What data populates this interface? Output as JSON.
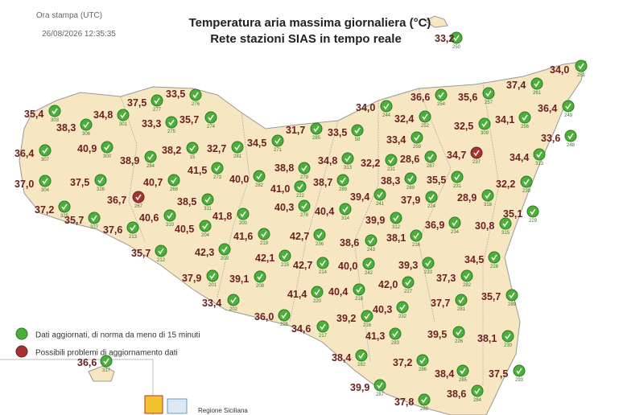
{
  "header": {
    "print_label": "Ora stampa (UTC)",
    "print_time": "26/08/2026 12:35:35",
    "title": "Temperatura aria massima giornaliera (°C)",
    "subtitle": "Rete stazioni SIAS in tempo reale"
  },
  "legend": {
    "ok": "Dati aggiornati, di norma da meno di 15 minuti",
    "problem": "Possibili problemi di aggiornamento dati"
  },
  "footer": {
    "region": "Regione Siciliana"
  },
  "stations": [
    {
      "temp": "33,2",
      "id": "250",
      "icon": "green"
    },
    {
      "temp": "35,4",
      "id": "303",
      "icon": "green"
    },
    {
      "temp": "38,3",
      "id": "306",
      "icon": "green"
    },
    {
      "temp": "34,8",
      "id": "301",
      "icon": "green"
    },
    {
      "temp": "37,5",
      "id": "277",
      "icon": "green"
    },
    {
      "temp": "33,5",
      "id": "276",
      "icon": "green"
    },
    {
      "temp": "33,3",
      "id": "275",
      "icon": "green"
    },
    {
      "temp": "35,7",
      "id": "274",
      "icon": "green"
    },
    {
      "temp": "36,4",
      "id": "307",
      "icon": "green"
    },
    {
      "temp": "40,9",
      "id": "300",
      "icon": "green"
    },
    {
      "temp": "38,9",
      "id": "284",
      "icon": "green"
    },
    {
      "temp": "38,2",
      "id": "15",
      "icon": "green"
    },
    {
      "temp": "32,7",
      "id": "281",
      "icon": "green"
    },
    {
      "temp": "34,5",
      "id": "271",
      "icon": "green"
    },
    {
      "temp": "31,7",
      "id": "285",
      "icon": "green"
    },
    {
      "temp": "33,5",
      "id": "58",
      "icon": "green"
    },
    {
      "temp": "34,0",
      "id": "244",
      "icon": "green"
    },
    {
      "temp": "36,6",
      "id": "254",
      "icon": "green"
    },
    {
      "temp": "35,6",
      "id": "257",
      "icon": "green"
    },
    {
      "temp": "37,4",
      "id": "261",
      "icon": "green"
    },
    {
      "temp": "34,0",
      "id": "251",
      "icon": "green"
    },
    {
      "temp": "36,4",
      "id": "249",
      "icon": "green"
    },
    {
      "temp": "32,4",
      "id": "252",
      "icon": "green"
    },
    {
      "temp": "32,5",
      "id": "309",
      "icon": "green"
    },
    {
      "temp": "34,1",
      "id": "256",
      "icon": "green"
    },
    {
      "temp": "33,6",
      "id": "248",
      "icon": "green"
    },
    {
      "temp": "33,4",
      "id": "259",
      "icon": "green"
    },
    {
      "temp": "37,0",
      "id": "304",
      "icon": "green"
    },
    {
      "temp": "37,5",
      "id": "326",
      "icon": "green"
    },
    {
      "temp": "40,7",
      "id": "268",
      "icon": "green"
    },
    {
      "temp": "41,5",
      "id": "273",
      "icon": "green"
    },
    {
      "temp": "40,0",
      "id": "282",
      "icon": "green"
    },
    {
      "temp": "38,8",
      "id": "279",
      "icon": "green"
    },
    {
      "temp": "34,8",
      "id": "313",
      "icon": "green"
    },
    {
      "temp": "32,2",
      "id": "231",
      "icon": "green"
    },
    {
      "temp": "28,6",
      "id": "287",
      "icon": "green"
    },
    {
      "temp": "34,7",
      "id": "237",
      "icon": "red"
    },
    {
      "temp": "34,4",
      "id": "313",
      "icon": "green"
    },
    {
      "temp": "41,0",
      "id": "222",
      "icon": "green"
    },
    {
      "temp": "38,7",
      "id": "289",
      "icon": "green"
    },
    {
      "temp": "38,3",
      "id": "289",
      "icon": "green"
    },
    {
      "temp": "35,5",
      "id": "231",
      "icon": "green"
    },
    {
      "temp": "32,2",
      "id": "230",
      "icon": "green"
    },
    {
      "temp": "36,7",
      "id": "267",
      "icon": "red"
    },
    {
      "temp": "38,5",
      "id": "311",
      "icon": "green"
    },
    {
      "temp": "39,4",
      "id": "241",
      "icon": "green"
    },
    {
      "temp": "37,9",
      "id": "224",
      "icon": "green"
    },
    {
      "temp": "28,9",
      "id": "318",
      "icon": "green"
    },
    {
      "temp": "37,2",
      "id": "325",
      "icon": "green"
    },
    {
      "temp": "35,7",
      "id": "327",
      "icon": "green"
    },
    {
      "temp": "40,6",
      "id": "310",
      "icon": "green"
    },
    {
      "temp": "41,8",
      "id": "200",
      "icon": "green"
    },
    {
      "temp": "40,3",
      "id": "278",
      "icon": "green"
    },
    {
      "temp": "40,4",
      "id": "314",
      "icon": "green"
    },
    {
      "temp": "39,9",
      "id": "312",
      "icon": "green"
    },
    {
      "temp": "36,9",
      "id": "234",
      "icon": "green"
    },
    {
      "temp": "30,8",
      "id": "315",
      "icon": "green"
    },
    {
      "temp": "35,1",
      "id": "229",
      "icon": "green"
    },
    {
      "temp": "37,6",
      "id": "213",
      "icon": "green"
    },
    {
      "temp": "40,5",
      "id": "204",
      "icon": "green"
    },
    {
      "temp": "41,6",
      "id": "219",
      "icon": "green"
    },
    {
      "temp": "42,7",
      "id": "236",
      "icon": "green"
    },
    {
      "temp": "38,6",
      "id": "243",
      "icon": "green"
    },
    {
      "temp": "38,1",
      "id": "216",
      "icon": "green"
    },
    {
      "temp": "35,7",
      "id": "212",
      "icon": "green"
    },
    {
      "temp": "42,3",
      "id": "203",
      "icon": "green"
    },
    {
      "temp": "42,1",
      "id": "215",
      "icon": "green"
    },
    {
      "temp": "42,7",
      "id": "214",
      "icon": "green"
    },
    {
      "temp": "40,0",
      "id": "242",
      "icon": "green"
    },
    {
      "temp": "39,3",
      "id": "233",
      "icon": "green"
    },
    {
      "temp": "34,5",
      "id": "228",
      "icon": "green"
    },
    {
      "temp": "37,9",
      "id": "201",
      "icon": "green"
    },
    {
      "temp": "39,1",
      "id": "208",
      "icon": "green"
    },
    {
      "temp": "37,3",
      "id": "282",
      "icon": "green"
    },
    {
      "temp": "42,0",
      "id": "227",
      "icon": "green"
    },
    {
      "temp": "41,4",
      "id": "220",
      "icon": "green"
    },
    {
      "temp": "40,4",
      "id": "218",
      "icon": "green"
    },
    {
      "temp": "37,7",
      "id": "281",
      "icon": "green"
    },
    {
      "temp": "35,7",
      "id": "289",
      "icon": "green"
    },
    {
      "temp": "33,4",
      "id": "202",
      "icon": "green"
    },
    {
      "temp": "40,3",
      "id": "232",
      "icon": "green"
    },
    {
      "temp": "36,0",
      "id": "225",
      "icon": "green"
    },
    {
      "temp": "39,2",
      "id": "216",
      "icon": "green"
    },
    {
      "temp": "34,6",
      "id": "217",
      "icon": "green"
    },
    {
      "temp": "41,3",
      "id": "283",
      "icon": "green"
    },
    {
      "temp": "39,5",
      "id": "226",
      "icon": "green"
    },
    {
      "temp": "38,1",
      "id": "230",
      "icon": "green"
    },
    {
      "temp": "38,4",
      "id": "282",
      "icon": "green"
    },
    {
      "temp": "37,2",
      "id": "286",
      "icon": "green"
    },
    {
      "temp": "38,4",
      "id": "285",
      "icon": "green"
    },
    {
      "temp": "37,5",
      "id": "293",
      "icon": "green"
    },
    {
      "temp": "36,6",
      "id": "317",
      "icon": "green"
    },
    {
      "temp": "39,9",
      "id": "287",
      "icon": "green"
    },
    {
      "temp": "37,8",
      "id": "288",
      "icon": "green"
    },
    {
      "temp": "38,6",
      "id": "284",
      "icon": "green"
    }
  ]
}
